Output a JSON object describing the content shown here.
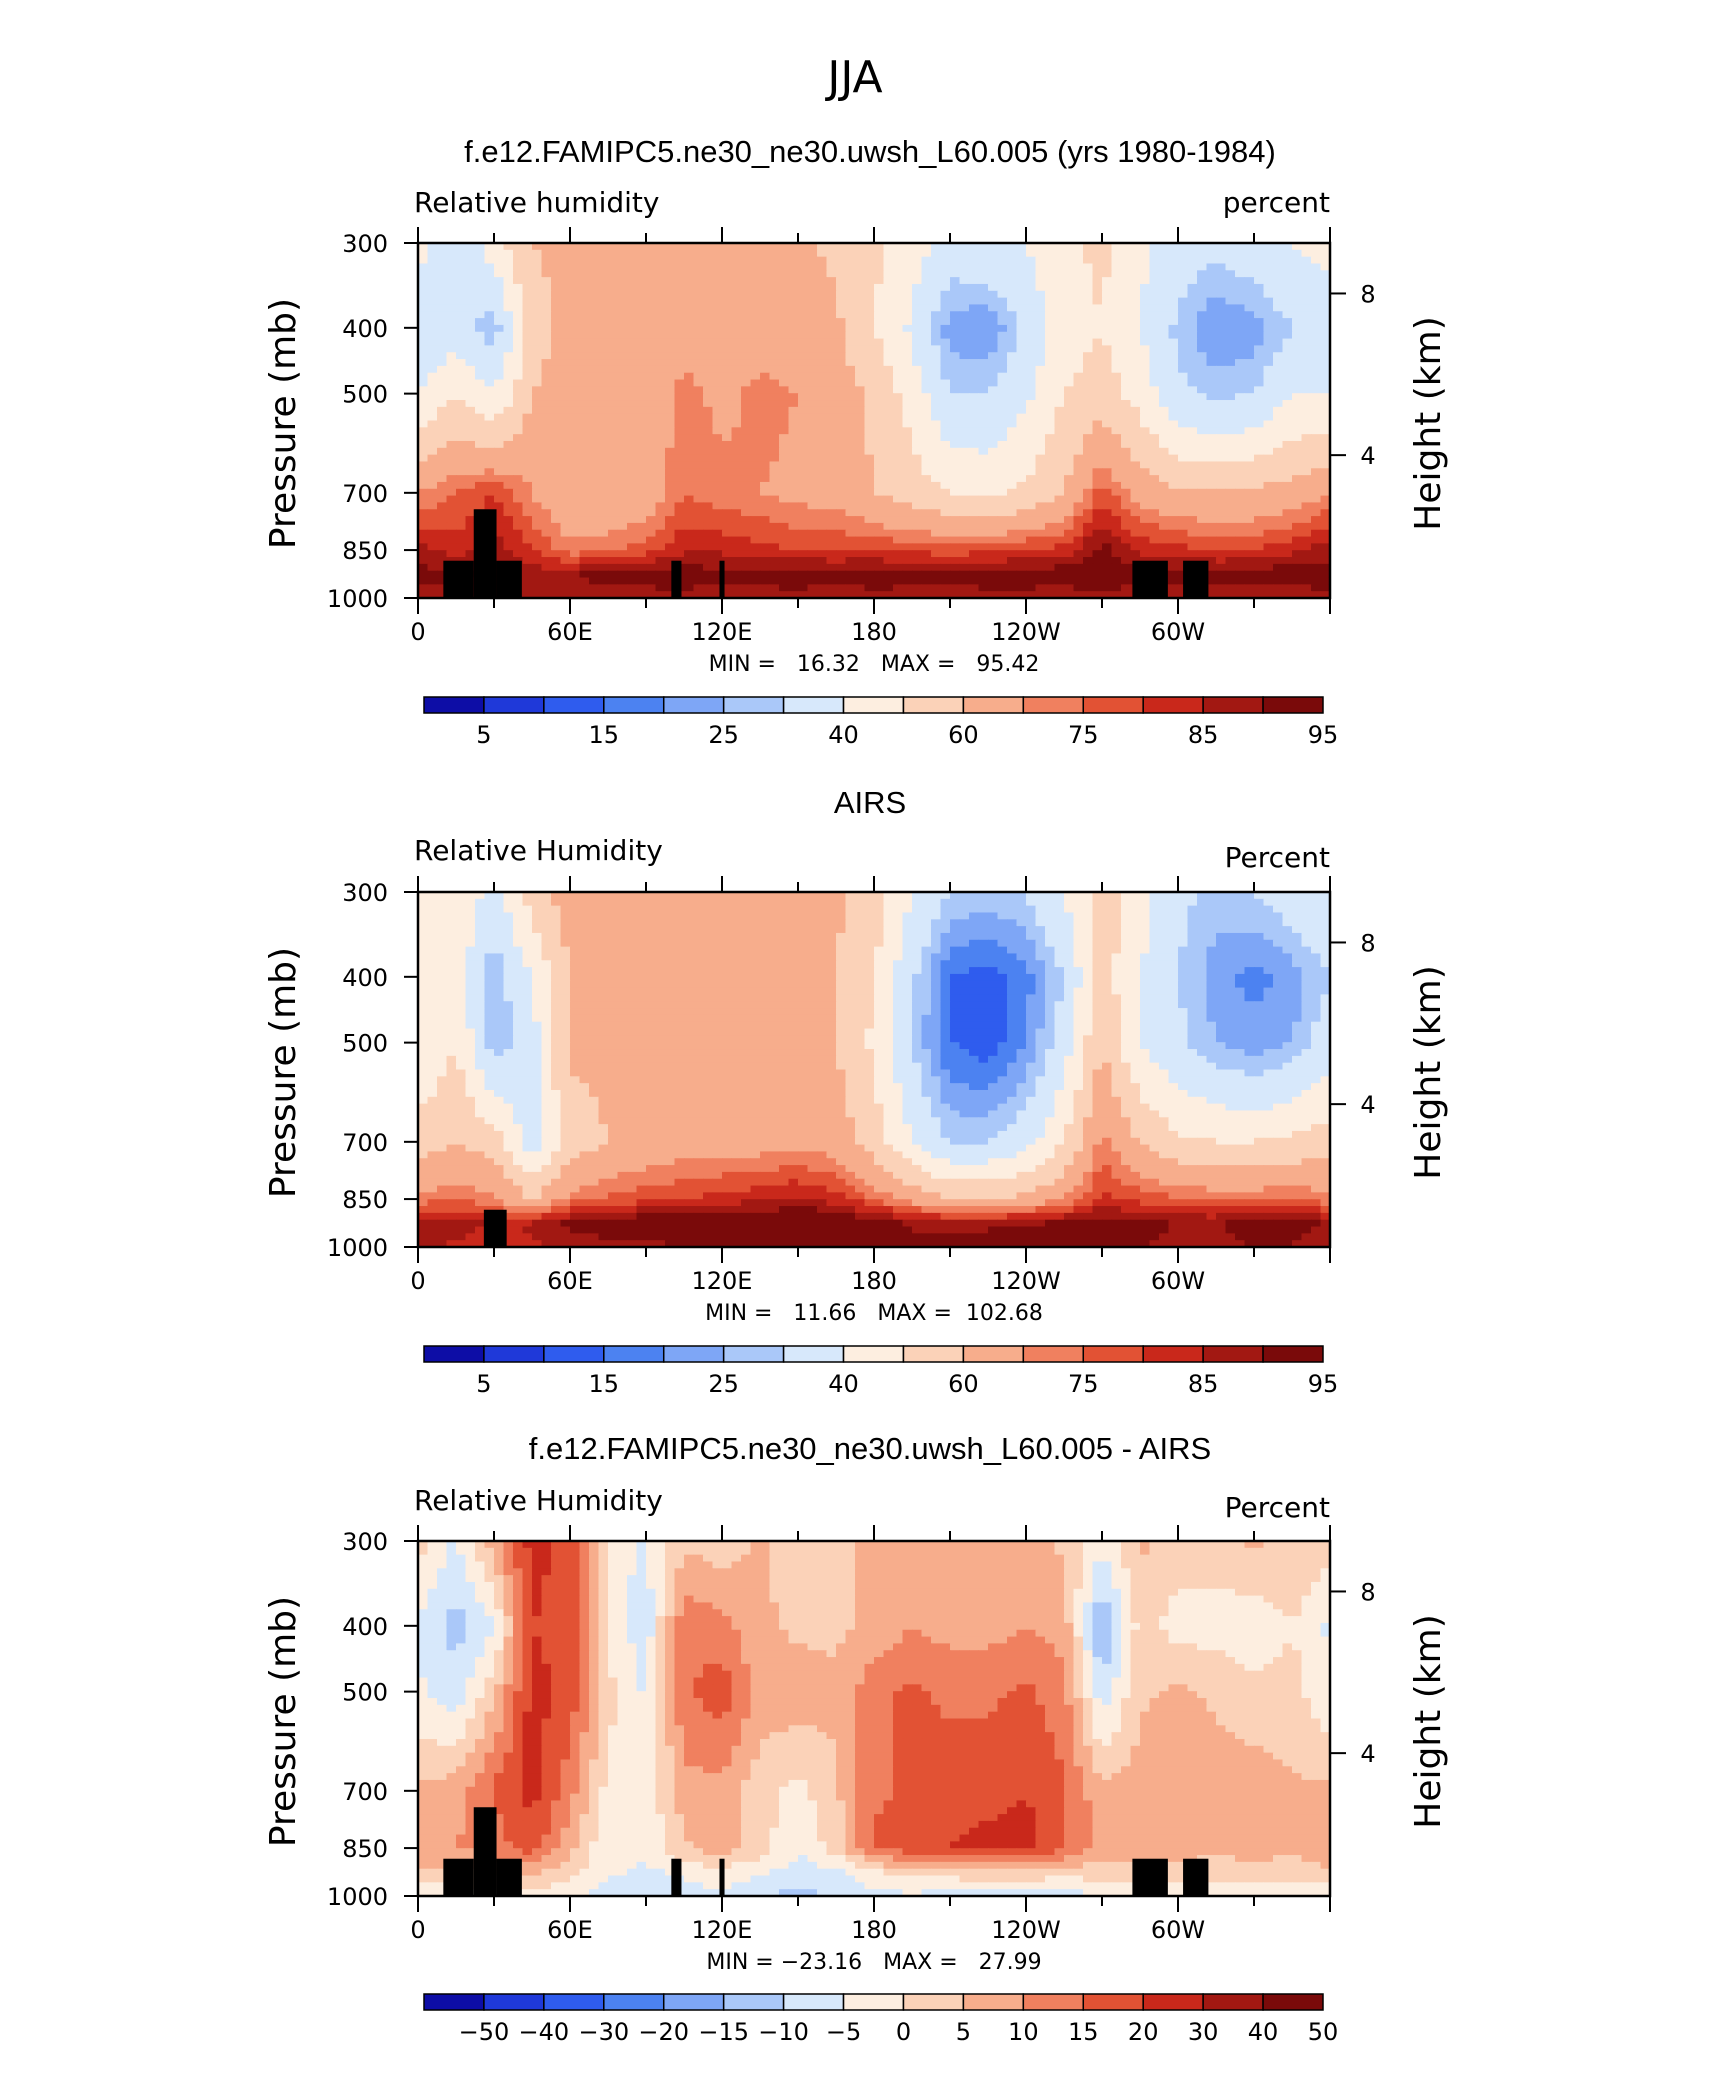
{
  "figure": {
    "title": "JJA"
  },
  "colors": {
    "abs_palette": [
      "#0d0da6",
      "#1f39d9",
      "#2f5cee",
      "#4c82f1",
      "#7ea6f6",
      "#aac8f9",
      "#d7e8fb",
      "#fdeee0",
      "#fbd2b8",
      "#f7ad8c",
      "#f0805f",
      "#e25234",
      "#c9281b",
      "#a21812",
      "#7a0a0a"
    ],
    "diff_palette": [
      "#0d0da6",
      "#1f39d9",
      "#2f5cee",
      "#4c82f1",
      "#7ea6f6",
      "#aac8f9",
      "#d7e8fb",
      "#fdeee0",
      "#fbd2b8",
      "#f7ad8c",
      "#f0805f",
      "#e25234",
      "#c9281b",
      "#a21812",
      "#7a0a0a"
    ],
    "land_mask": "#000000"
  },
  "panels": [
    {
      "title": "f.e12.FAMIPC5.ne30_ne30.uwsh_L60.005 (yrs 1980-1984)",
      "left_label": "Relative  humidity",
      "right_label": "percent",
      "stats": "MIN =   16.32   MAX =   95.42",
      "colorbar_labels": [
        "5",
        "15",
        "25",
        "40",
        "60",
        "75",
        "85",
        "95"
      ]
    },
    {
      "title": "AIRS",
      "left_label": "Relative  Humidity",
      "right_label": "Percent",
      "stats": "MIN =   11.66   MAX =  102.68",
      "colorbar_labels": [
        "5",
        "15",
        "25",
        "40",
        "60",
        "75",
        "85",
        "95"
      ]
    },
    {
      "title": "f.e12.FAMIPC5.ne30_ne30.uwsh_L60.005 - AIRS",
      "left_label": "Relative  Humidity",
      "right_label": "Percent",
      "stats": "MIN = −23.16   MAX =   27.99",
      "colorbar_labels": [
        "−50",
        "−40",
        "−30",
        "−20",
        "−15",
        "−10",
        "−5",
        "0",
        "5",
        "10",
        "15",
        "20",
        "30",
        "40",
        "50"
      ]
    }
  ],
  "chart_data": [
    {
      "type": "heatmap",
      "title": "f.e12.FAMIPC5.ne30_ne30.uwsh_L60.005 (yrs 1980-1984)",
      "xlabel": "",
      "ylabel": "Pressure  (mb)",
      "y2label": "Height  (km)",
      "x_tick_labels": [
        "0",
        "60E",
        "120E",
        "180",
        "120W",
        "60W"
      ],
      "x_range": [
        0,
        360
      ],
      "y_tick_labels": [
        "300",
        "400",
        "500",
        "700",
        "850",
        "1000"
      ],
      "y_range_mb": [
        1000,
        300
      ],
      "y2_tick_labels": [
        "8",
        "4"
      ],
      "contour_levels": [
        5,
        10,
        15,
        20,
        25,
        30,
        40,
        50,
        60,
        70,
        75,
        80,
        85,
        90,
        95
      ],
      "min": 16.32,
      "max": 95.42,
      "lon_index": [
        0,
        15,
        30,
        45,
        60,
        75,
        90,
        105,
        120,
        135,
        150,
        165,
        180,
        195,
        210,
        225,
        240,
        255,
        270,
        285,
        300,
        315,
        330,
        345,
        360
      ],
      "pressure_index": [
        300,
        400,
        500,
        700,
        850,
        925,
        1000
      ],
      "values": [
        [
          45,
          30,
          45,
          60,
          62,
          60,
          60,
          62,
          62,
          60,
          62,
          58,
          52,
          45,
          35,
          38,
          40,
          48,
          52,
          42,
          35,
          32,
          36,
          40,
          45
        ],
        [
          30,
          35,
          25,
          55,
          65,
          62,
          62,
          68,
          65,
          66,
          65,
          62,
          50,
          38,
          22,
          20,
          32,
          45,
          50,
          40,
          28,
          20,
          22,
          30,
          30
        ],
        [
          40,
          50,
          40,
          60,
          64,
          62,
          64,
          72,
          68,
          72,
          70,
          65,
          58,
          46,
          30,
          30,
          38,
          50,
          55,
          46,
          32,
          28,
          30,
          40,
          40
        ],
        [
          70,
          75,
          80,
          70,
          62,
          60,
          64,
          75,
          72,
          70,
          68,
          66,
          60,
          55,
          50,
          48,
          52,
          60,
          78,
          66,
          62,
          60,
          62,
          64,
          70
        ],
        [
          88,
          82,
          88,
          80,
          72,
          74,
          78,
          84,
          84,
          82,
          80,
          80,
          80,
          78,
          78,
          78,
          80,
          82,
          92,
          84,
          82,
          80,
          80,
          84,
          88
        ],
        [
          93,
          90,
          92,
          88,
          90,
          93,
          92,
          94,
          92,
          92,
          94,
          92,
          93,
          93,
          92,
          93,
          94,
          94,
          95,
          92,
          92,
          92,
          93,
          94,
          93
        ],
        [
          88,
          86,
          87,
          88,
          86,
          87,
          88,
          88,
          86,
          88,
          87,
          86,
          88,
          87,
          86,
          88,
          87,
          86,
          88,
          87,
          86,
          88,
          87,
          86,
          88
        ]
      ],
      "land_mask_lon_ranges": [
        [
          10,
          22
        ],
        [
          22,
          31
        ],
        [
          31,
          41
        ],
        [
          100,
          104
        ],
        [
          119,
          121
        ],
        [
          282,
          296
        ],
        [
          302,
          312
        ]
      ]
    },
    {
      "type": "heatmap",
      "title": "AIRS",
      "xlabel": "",
      "ylabel": "Pressure  (mb)",
      "y2label": "Height  (km)",
      "x_tick_labels": [
        "0",
        "60E",
        "120E",
        "180",
        "120W",
        "60W"
      ],
      "x_range": [
        0,
        360
      ],
      "y_tick_labels": [
        "300",
        "400",
        "500",
        "700",
        "850",
        "1000"
      ],
      "y_range_mb": [
        1000,
        300
      ],
      "y2_tick_labels": [
        "8",
        "4"
      ],
      "contour_levels": [
        5,
        10,
        15,
        20,
        25,
        30,
        40,
        50,
        60,
        70,
        75,
        80,
        85,
        90,
        95
      ],
      "min": 11.66,
      "max": 102.68,
      "lon_index": [
        0,
        15,
        30,
        45,
        60,
        75,
        90,
        105,
        120,
        135,
        150,
        165,
        180,
        195,
        210,
        225,
        240,
        255,
        270,
        285,
        300,
        315,
        330,
        345,
        360
      ],
      "pressure_index": [
        300,
        400,
        500,
        700,
        850,
        925,
        1000
      ],
      "values": [
        [
          45,
          50,
          35,
          55,
          65,
          62,
          60,
          62,
          60,
          62,
          64,
          62,
          55,
          40,
          30,
          28,
          30,
          40,
          55,
          45,
          32,
          28,
          30,
          35,
          40
        ],
        [
          40,
          45,
          25,
          40,
          60,
          62,
          60,
          60,
          60,
          62,
          64,
          60,
          50,
          32,
          15,
          12,
          18,
          30,
          55,
          40,
          30,
          22,
          18,
          22,
          30
        ],
        [
          40,
          50,
          25,
          35,
          62,
          62,
          60,
          62,
          64,
          66,
          64,
          60,
          48,
          30,
          15,
          12,
          20,
          35,
          60,
          40,
          32,
          25,
          22,
          25,
          35
        ],
        [
          55,
          60,
          55,
          35,
          55,
          60,
          64,
          66,
          66,
          66,
          68,
          66,
          55,
          40,
          30,
          30,
          36,
          50,
          72,
          60,
          52,
          50,
          50,
          52,
          55
        ],
        [
          72,
          74,
          72,
          60,
          72,
          76,
          78,
          80,
          82,
          84,
          86,
          82,
          75,
          66,
          60,
          60,
          62,
          70,
          82,
          78,
          76,
          74,
          74,
          76,
          72
        ],
        [
          90,
          88,
          84,
          86,
          92,
          94,
          96,
          96,
          98,
          96,
          100,
          98,
          94,
          90,
          88,
          88,
          90,
          92,
          94,
          92,
          90,
          90,
          92,
          92,
          90
        ],
        [
          86,
          84,
          82,
          84,
          86,
          88,
          88,
          90,
          92,
          90,
          92,
          92,
          90,
          90,
          92,
          96,
          98,
          94,
          92,
          90,
          88,
          88,
          90,
          90,
          86
        ]
      ],
      "land_mask_lon_ranges": [
        [
          26,
          35
        ]
      ]
    },
    {
      "type": "heatmap",
      "title": "f.e12.FAMIPC5.ne30_ne30.uwsh_L60.005 - AIRS",
      "xlabel": "",
      "ylabel": "Pressure  (mb)",
      "y2label": "Height  (km)",
      "x_tick_labels": [
        "0",
        "60E",
        "120E",
        "180",
        "120W",
        "60W"
      ],
      "x_range": [
        0,
        360
      ],
      "y_tick_labels": [
        "300",
        "400",
        "500",
        "700",
        "850",
        "1000"
      ],
      "y_range_mb": [
        1000,
        300
      ],
      "y2_tick_labels": [
        "8",
        "4"
      ],
      "contour_levels": [
        -50,
        -40,
        -30,
        -20,
        -15,
        -10,
        -5,
        0,
        5,
        10,
        15,
        20,
        30,
        40,
        50
      ],
      "min": -23.16,
      "max": 27.99,
      "lon_index": [
        0,
        15,
        30,
        45,
        60,
        75,
        90,
        105,
        120,
        135,
        150,
        165,
        180,
        195,
        210,
        225,
        240,
        255,
        270,
        285,
        300,
        315,
        330,
        345,
        360
      ],
      "pressure_index": [
        300,
        400,
        500,
        700,
        850,
        925,
        1000
      ],
      "values": [
        [
          2,
          -6,
          8,
          22,
          18,
          -2,
          -6,
          4,
          2,
          6,
          2,
          4,
          6,
          8,
          6,
          8,
          8,
          4,
          -4,
          6,
          2,
          2,
          6,
          4,
          2
        ],
        [
          -6,
          -12,
          -6,
          20,
          18,
          -2,
          -8,
          14,
          12,
          6,
          4,
          4,
          6,
          10,
          8,
          8,
          10,
          8,
          -16,
          2,
          -2,
          -2,
          -4,
          0,
          -6
        ],
        [
          -4,
          -8,
          4,
          22,
          18,
          2,
          -6,
          14,
          18,
          8,
          8,
          6,
          14,
          16,
          14,
          14,
          16,
          12,
          -8,
          4,
          6,
          4,
          2,
          2,
          -4
        ],
        [
          6,
          8,
          16,
          22,
          12,
          -2,
          -4,
          8,
          8,
          2,
          -2,
          4,
          14,
          16,
          18,
          18,
          20,
          16,
          6,
          8,
          10,
          8,
          8,
          6,
          6
        ],
        [
          8,
          10,
          12,
          18,
          6,
          -4,
          -4,
          4,
          8,
          2,
          -4,
          2,
          16,
          18,
          20,
          22,
          22,
          16,
          8,
          10,
          8,
          6,
          8,
          6,
          8
        ],
        [
          4,
          4,
          6,
          6,
          2,
          -4,
          -6,
          -4,
          -2,
          -4,
          -8,
          -6,
          -2,
          2,
          2,
          4,
          4,
          2,
          2,
          2,
          2,
          2,
          2,
          2,
          4
        ],
        [
          -4,
          -4,
          -2,
          -2,
          -4,
          -8,
          -6,
          -8,
          -6,
          -10,
          -12,
          -8,
          -6,
          -6,
          -8,
          -8,
          -10,
          -8,
          -4,
          -4,
          -4,
          -4,
          -4,
          -2,
          -4
        ]
      ],
      "land_mask_lon_ranges": [
        [
          10,
          22
        ],
        [
          22,
          31
        ],
        [
          31,
          41
        ],
        [
          100,
          104
        ],
        [
          119,
          121
        ],
        [
          282,
          296
        ],
        [
          302,
          312
        ]
      ]
    }
  ]
}
